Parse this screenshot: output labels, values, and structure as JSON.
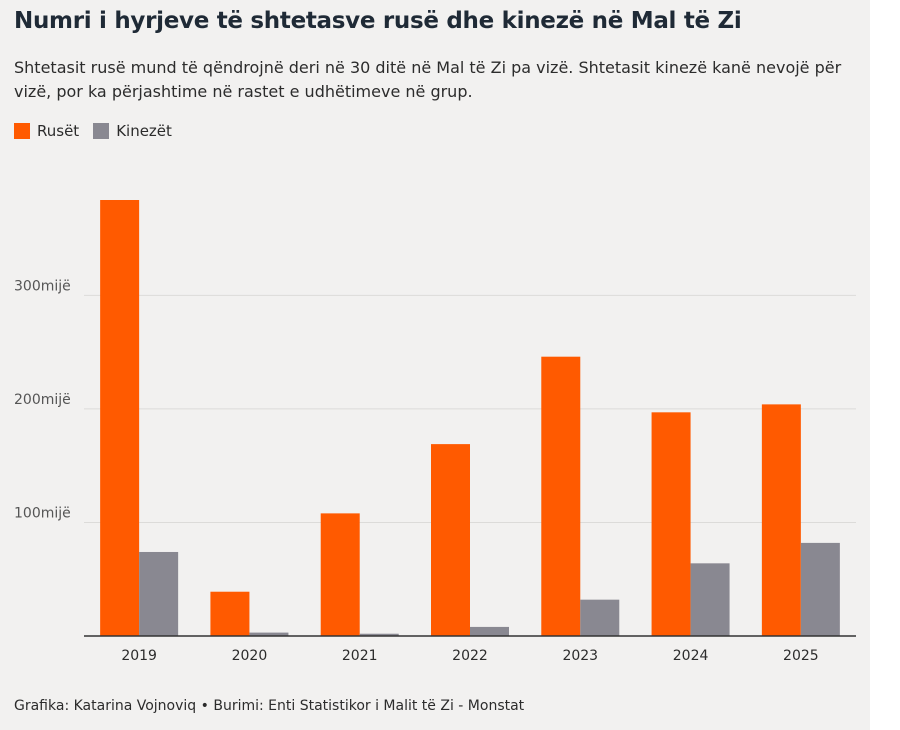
{
  "title": "Numri i hyrjeve të shtetasve rusë dhe kinezë në Mal të Zi",
  "subtitle": "Shtetasit rusë mund të qëndrojnë deri në 30 ditë në Mal të Zi pa vizë. Shtetasit kinezë kanë nevojë për vizë, por ka përjashtime në rastet e udhëtimeve në grup.",
  "source": "Grafika: Katarina Vojnoviq • Burimi: Enti Statistikor i Malit të Zi - Monstat",
  "chart_data": {
    "type": "bar",
    "categories": [
      "2019",
      "2020",
      "2021",
      "2022",
      "2023",
      "2024",
      "2025"
    ],
    "series": [
      {
        "name": "Rusët",
        "color": "#ff5a00",
        "values": [
          384000,
          39000,
          108000,
          169000,
          246000,
          197000,
          204000
        ]
      },
      {
        "name": "Kinezët",
        "color": "#898891",
        "values": [
          74000,
          3000,
          2000,
          8000,
          32000,
          64000,
          82000
        ]
      }
    ],
    "ylim": [
      0,
      384000
    ],
    "yticks": [
      {
        "value": 100000,
        "label": "100mijë"
      },
      {
        "value": 200000,
        "label": "200mijë"
      },
      {
        "value": 300000,
        "label": "300mijë"
      }
    ],
    "grid": true,
    "legend": "top-left"
  }
}
